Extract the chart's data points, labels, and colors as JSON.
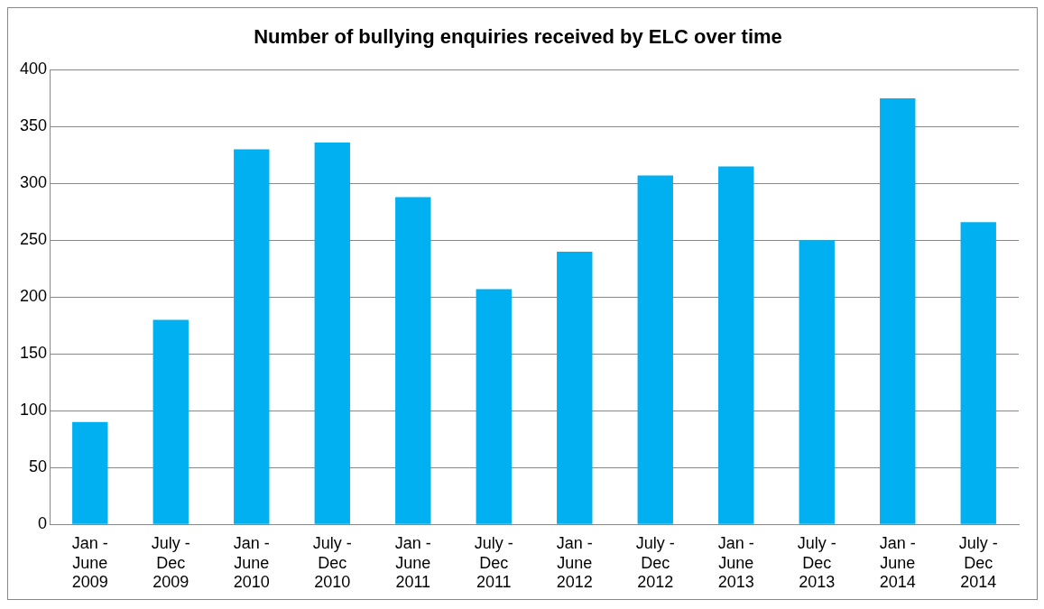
{
  "chart_data": {
    "type": "bar",
    "title": "Number of bullying enquiries received by ELC over time",
    "categories": [
      "Jan -\nJune\n2009",
      "July -\nDec\n2009",
      "Jan -\nJune\n2010",
      "July -\nDec\n2010",
      "Jan -\nJune\n2011",
      "July -\nDec\n2011",
      "Jan -\nJune\n2012",
      "July -\nDec\n2012",
      "Jan -\nJune\n2013",
      "July -\nDec\n2013",
      "Jan -\nJune\n2014",
      "July -\nDec\n2014"
    ],
    "values": [
      90,
      180,
      330,
      336,
      288,
      207,
      240,
      307,
      315,
      250,
      375,
      266
    ],
    "color": "#00b0f0",
    "ylim": [
      0,
      400
    ],
    "yticks": [
      0,
      50,
      100,
      150,
      200,
      250,
      300,
      350,
      400
    ],
    "grid": "y",
    "legend": false
  }
}
